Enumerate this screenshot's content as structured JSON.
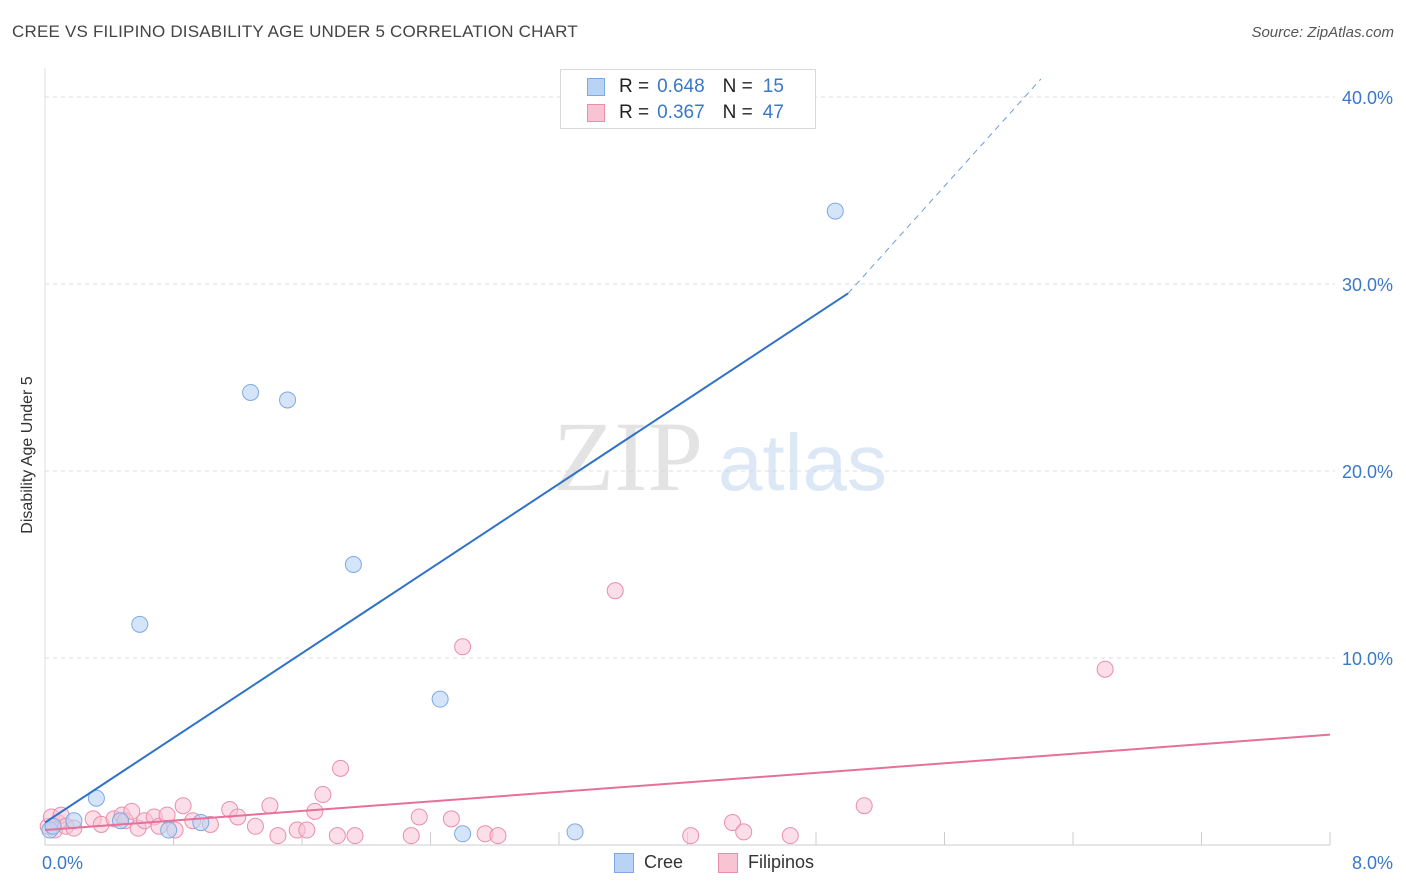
{
  "title": "CREE VS FILIPINO DISABILITY AGE UNDER 5 CORRELATION CHART",
  "source": "Source: ZipAtlas.com",
  "watermark": {
    "zip": "ZIP",
    "atlas": "atlas"
  },
  "legend": {
    "rows": [
      {
        "r_label": "R =",
        "r_value": "0.648",
        "n_label": "N =",
        "n_value": "15"
      },
      {
        "r_label": "R =",
        "r_value": "0.367",
        "n_label": "N =",
        "n_value": "47"
      }
    ]
  },
  "bottom_legend": {
    "series1": "Cree",
    "series2": "Filipinos"
  },
  "chart_data": {
    "type": "scatter",
    "xlabel": "",
    "ylabel": "Disability Age Under 5",
    "xlim": [
      0,
      8
    ],
    "ylim": [
      0,
      40
    ],
    "x_tick_labels": [
      {
        "value": 0,
        "label": "0.0%"
      },
      {
        "value": 8,
        "label": "8.0%"
      }
    ],
    "y_tick_labels": [
      {
        "value": 10,
        "label": "10.0%"
      },
      {
        "value": 20,
        "label": "20.0%"
      },
      {
        "value": 30,
        "label": "30.0%"
      },
      {
        "value": 40,
        "label": "40.0%"
      }
    ],
    "colors": {
      "cree_fill": "#b9d3f5",
      "cree_stroke": "#7ea9e0",
      "cree_line": "#2f72c8",
      "fil_fill": "#f8c3d3",
      "fil_stroke": "#e98eab",
      "fil_line": "#e5709a",
      "tick_text": "#3a78c9",
      "grid": "#dcdcdc"
    },
    "series": [
      {
        "name": "Cree",
        "points": [
          [
            0.03,
            0.8
          ],
          [
            0.05,
            1.0
          ],
          [
            0.18,
            1.3
          ],
          [
            0.32,
            2.5
          ],
          [
            0.47,
            1.3
          ],
          [
            0.59,
            11.8
          ],
          [
            0.77,
            0.8
          ],
          [
            0.97,
            1.2
          ],
          [
            1.28,
            24.2
          ],
          [
            1.51,
            23.8
          ],
          [
            1.92,
            15.0
          ],
          [
            2.46,
            7.8
          ],
          [
            2.6,
            0.6
          ],
          [
            3.3,
            0.7
          ],
          [
            4.92,
            33.9
          ]
        ],
        "trend": {
          "x0": 0.0,
          "y0": 1.2,
          "x1": 5.0,
          "y1": 29.5,
          "dash_x1": 6.2,
          "dash_y1": 40.0
        }
      },
      {
        "name": "Filipinos",
        "points": [
          [
            0.02,
            1.0
          ],
          [
            0.04,
            1.5
          ],
          [
            0.06,
            0.8
          ],
          [
            0.08,
            1.2
          ],
          [
            0.1,
            1.6
          ],
          [
            0.13,
            1.0
          ],
          [
            0.18,
            0.9
          ],
          [
            0.3,
            1.4
          ],
          [
            0.35,
            1.1
          ],
          [
            0.43,
            1.4
          ],
          [
            0.48,
            1.6
          ],
          [
            0.5,
            1.3
          ],
          [
            0.54,
            1.8
          ],
          [
            0.58,
            0.9
          ],
          [
            0.62,
            1.3
          ],
          [
            0.68,
            1.5
          ],
          [
            0.71,
            1.0
          ],
          [
            0.76,
            1.6
          ],
          [
            0.81,
            0.8
          ],
          [
            0.86,
            2.1
          ],
          [
            0.92,
            1.3
          ],
          [
            1.03,
            1.1
          ],
          [
            1.15,
            1.9
          ],
          [
            1.2,
            1.5
          ],
          [
            1.31,
            1.0
          ],
          [
            1.4,
            2.1
          ],
          [
            1.45,
            0.5
          ],
          [
            1.57,
            0.8
          ],
          [
            1.63,
            0.8
          ],
          [
            1.68,
            1.8
          ],
          [
            1.73,
            2.7
          ],
          [
            1.82,
            0.5
          ],
          [
            1.84,
            4.1
          ],
          [
            1.93,
            0.5
          ],
          [
            2.28,
            0.5
          ],
          [
            2.33,
            1.5
          ],
          [
            2.53,
            1.4
          ],
          [
            2.6,
            10.6
          ],
          [
            2.74,
            0.6
          ],
          [
            2.82,
            0.5
          ],
          [
            3.55,
            13.6
          ],
          [
            4.02,
            0.5
          ],
          [
            4.28,
            1.2
          ],
          [
            4.35,
            0.7
          ],
          [
            4.64,
            0.5
          ],
          [
            5.1,
            2.1
          ],
          [
            6.6,
            9.4
          ]
        ],
        "trend": {
          "x0": 0.0,
          "y0": 0.8,
          "x1": 8.0,
          "y1": 5.9
        }
      }
    ]
  }
}
